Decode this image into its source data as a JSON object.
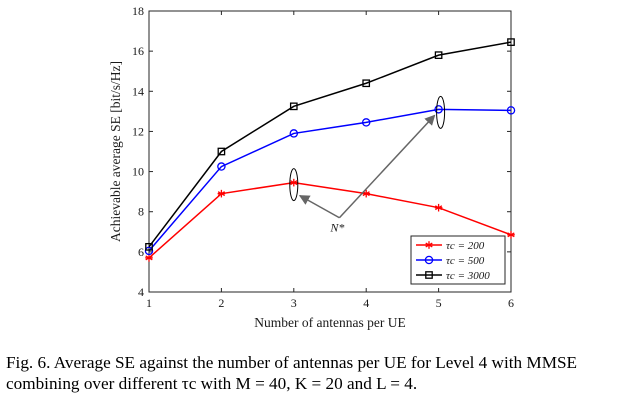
{
  "chart_data": {
    "type": "line",
    "x": [
      1,
      2,
      3,
      4,
      5,
      6
    ],
    "xlabel": "Number of antennas per UE",
    "ylabel": "Achievable average SE [bit/s/Hz]",
    "xlim": [
      1,
      6
    ],
    "ylim": [
      4,
      18
    ],
    "xticks": [
      "1",
      "2",
      "3",
      "4",
      "5",
      "6"
    ],
    "yticks": [
      "4",
      "6",
      "8",
      "10",
      "12",
      "14",
      "16",
      "18"
    ],
    "grid": false,
    "legend_position": "bottom-right",
    "series": [
      {
        "name": "τc = 200",
        "marker": "asterisk",
        "color": "#ff0000",
        "values": [
          5.7,
          8.9,
          9.45,
          8.9,
          8.2,
          6.85
        ]
      },
      {
        "name": "τc = 500",
        "marker": "circle",
        "color": "#0000ff",
        "values": [
          6.05,
          10.25,
          11.9,
          12.45,
          13.1,
          13.05
        ]
      },
      {
        "name": "τc = 3000",
        "marker": "square",
        "color": "#000000",
        "values": [
          6.25,
          11.0,
          13.25,
          14.4,
          15.8,
          16.45
        ]
      }
    ],
    "annotation": {
      "text": "N*"
    }
  },
  "caption": {
    "text": "Fig. 6.   Average SE against the number of antennas per UE for Level 4 with MMSE combining over different τc with M = 40, K = 20 and L = 4."
  }
}
